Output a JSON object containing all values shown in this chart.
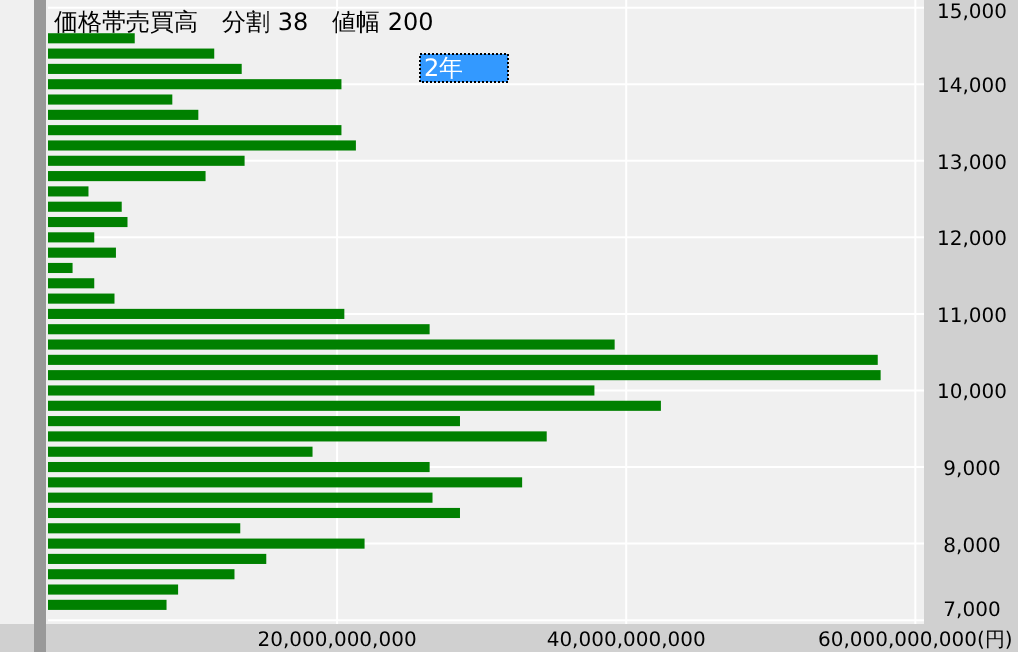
{
  "chart_data": {
    "type": "bar",
    "orientation": "horizontal",
    "title": "価格帯売買高　分割 38　値幅 200",
    "annotations": [
      "2年"
    ],
    "x": [
      7200,
      7400,
      7600,
      7800,
      8000,
      8200,
      8400,
      8600,
      8800,
      9000,
      9200,
      9400,
      9600,
      9800,
      10000,
      10200,
      10400,
      10600,
      10800,
      11000,
      11200,
      11400,
      11600,
      11800,
      12000,
      12200,
      12400,
      12600,
      12800,
      13000,
      13200,
      13400,
      13600,
      13800,
      14000,
      14200,
      14400,
      14600
    ],
    "values": [
      8200000000,
      9000000000,
      12900000000,
      15100000000,
      21900000000,
      13300000000,
      28500000000,
      26600000000,
      32800000000,
      26400000000,
      18300000000,
      34500000000,
      28500000000,
      42400000000,
      37800000000,
      57600000000,
      57400000000,
      39200000000,
      26400000000,
      20500000000,
      4600000000,
      3200000000,
      1700000000,
      4700000000,
      3200000000,
      5500000000,
      5100000000,
      2800000000,
      10900000000,
      13600000000,
      21300000000,
      20300000000,
      10400000000,
      8600000000,
      20300000000,
      13400000000,
      11500000000,
      6000000000
    ],
    "color": "#008000",
    "xlim": [
      0,
      60600000000
    ],
    "xticks": [
      {
        "value": 20000000000,
        "label": "20,000,000,000"
      },
      {
        "value": 40000000000,
        "label": "40,000,000,000"
      },
      {
        "value": 60000000000,
        "label": "60,000,000,000(円)"
      }
    ],
    "ylim": [
      6950,
      15100
    ],
    "yticks": [
      {
        "value": 7000,
        "label": "7,000"
      },
      {
        "value": 8000,
        "label": "8,000"
      },
      {
        "value": 9000,
        "label": "9,000"
      },
      {
        "value": 10000,
        "label": "10,000"
      },
      {
        "value": 11000,
        "label": "11,000"
      },
      {
        "value": 12000,
        "label": "12,000"
      },
      {
        "value": 13000,
        "label": "13,000"
      },
      {
        "value": 14000,
        "label": "14,000"
      },
      {
        "value": 15000,
        "label": "15,000"
      }
    ],
    "grid": true
  }
}
